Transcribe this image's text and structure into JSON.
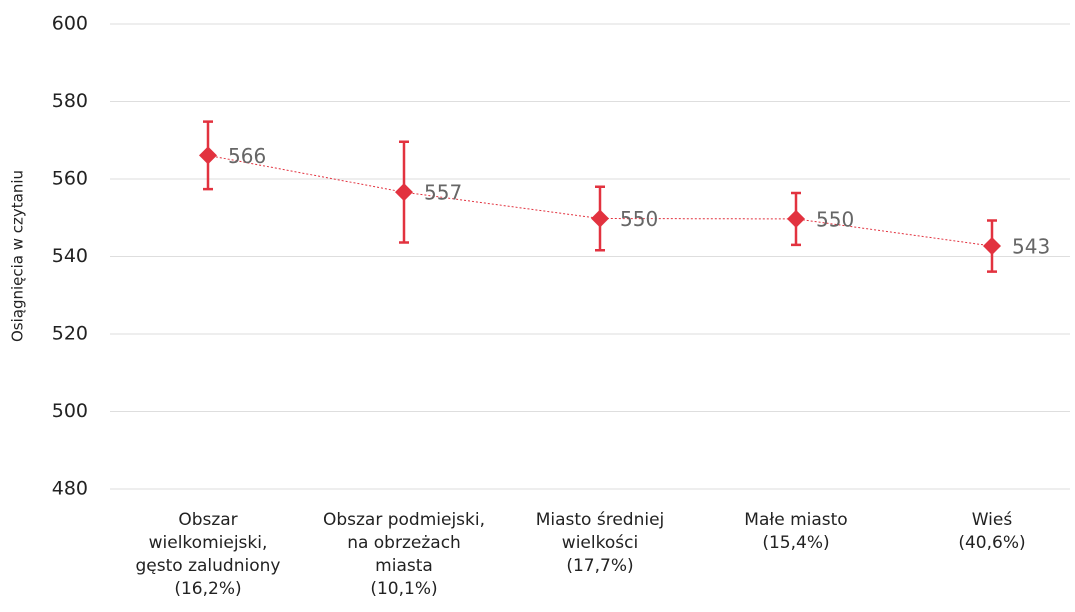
{
  "chart_data": {
    "type": "errorbar-line",
    "y_label": "Osiągnięcia w czytaniu",
    "categories": [
      [
        "Obszar",
        "wielkomiejski,",
        "gęsto zaludniony",
        "(16,2%)"
      ],
      [
        "Obszar podmiejski,",
        "na obrzeżach",
        "miasta",
        "(10,1%)"
      ],
      [
        "Miasto średniej",
        "wielkości",
        "(17,7%)"
      ],
      [
        "Małe miasto",
        "(15,4%)"
      ],
      [
        "Wieś",
        "(40,6%)"
      ]
    ],
    "values": [
      566.1,
      556.6,
      549.8,
      549.7,
      542.7
    ],
    "value_labels": [
      "566",
      "557",
      "550",
      "550",
      "543"
    ],
    "errors": [
      8.7,
      13,
      8.2,
      6.7,
      6.6
    ],
    "color": "#e2323f",
    "ylim": [
      480,
      600
    ],
    "yticks": [
      480,
      500,
      520,
      540,
      560,
      580,
      600
    ],
    "grid": true
  }
}
